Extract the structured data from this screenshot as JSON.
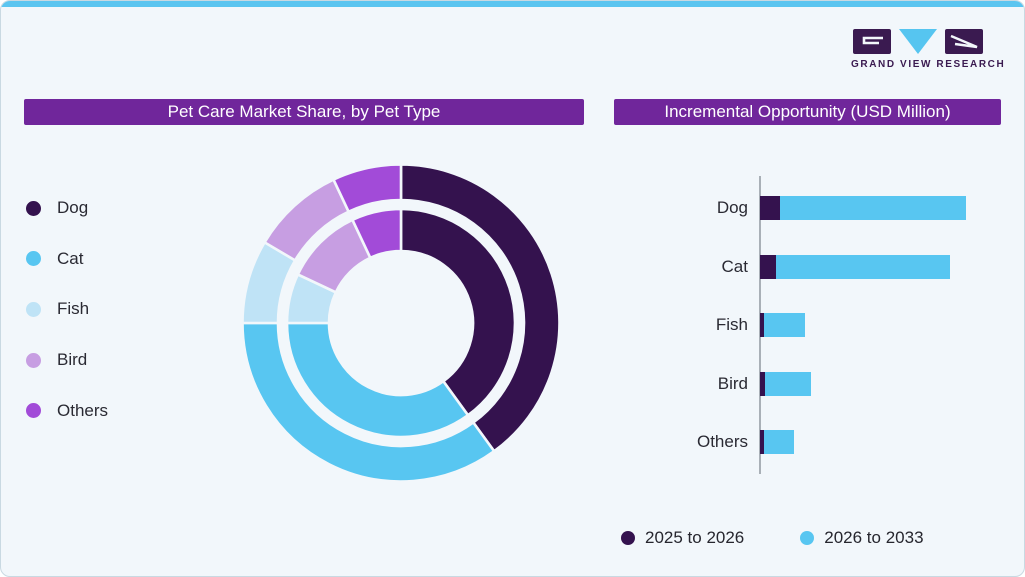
{
  "brand": {
    "name": "GRAND VIEW RESEARCH"
  },
  "palette": {
    "dog": "#34124E",
    "cat": "#58C6F1",
    "fish": "#BFE3F6",
    "bird": "#C79EE2",
    "others": "#A24BD8",
    "title_bar": "#70269B",
    "title_text": "#FFFFFF",
    "top_strip": "#5BC5F0",
    "card_bg": "#F2F7FB",
    "card_border": "#C9D9E2",
    "axis": "#A9B0B7",
    "text": "#2A2A33",
    "logo_dark": "#3A1A50",
    "series_2025": "#34124E",
    "series_2026": "#58C6F1"
  },
  "donut_panel": {
    "title": "Pet Care Market Share, by Pet Type",
    "legend": [
      {
        "label": "Dog",
        "color": "dog"
      },
      {
        "label": "Cat",
        "color": "cat"
      },
      {
        "label": "Fish",
        "color": "fish"
      },
      {
        "label": "Bird",
        "color": "bird"
      },
      {
        "label": "Others",
        "color": "others"
      }
    ]
  },
  "bar_panel": {
    "title": "Incremental Opportunity (USD Million)",
    "legend": [
      {
        "label": "2025 to 2026",
        "color": "series_2025"
      },
      {
        "label": "2026 to 2033",
        "color": "series_2026"
      }
    ]
  },
  "chart_data": [
    {
      "type": "pie",
      "subtype": "double-ring donut",
      "title": "Pet Care Market Share, by Pet Type",
      "labels": [
        "Dog",
        "Cat",
        "Fish",
        "Bird",
        "Others"
      ],
      "rings": [
        {
          "name": "inner",
          "values_pct": [
            40,
            35,
            7,
            11,
            7
          ]
        },
        {
          "name": "outer",
          "values_pct": [
            40,
            35,
            8.5,
            9.5,
            7
          ]
        }
      ],
      "start_angle_deg": 0,
      "direction": "clockwise",
      "note": "no numeric labels shown; percentages estimated from arc angles",
      "legend_position": "left"
    },
    {
      "type": "bar",
      "orientation": "horizontal",
      "stacked": true,
      "title": "Incremental Opportunity (USD Million)",
      "categories": [
        "Dog",
        "Cat",
        "Fish",
        "Bird",
        "Others"
      ],
      "series": [
        {
          "name": "2025 to 2026",
          "values": [
            20,
            16,
            4,
            5,
            4
          ]
        },
        {
          "name": "2026 to 2033",
          "values": [
            186,
            174,
            41,
            46,
            30
          ]
        }
      ],
      "units": "relative length; no value axis shown",
      "legend_position": "bottom"
    }
  ]
}
